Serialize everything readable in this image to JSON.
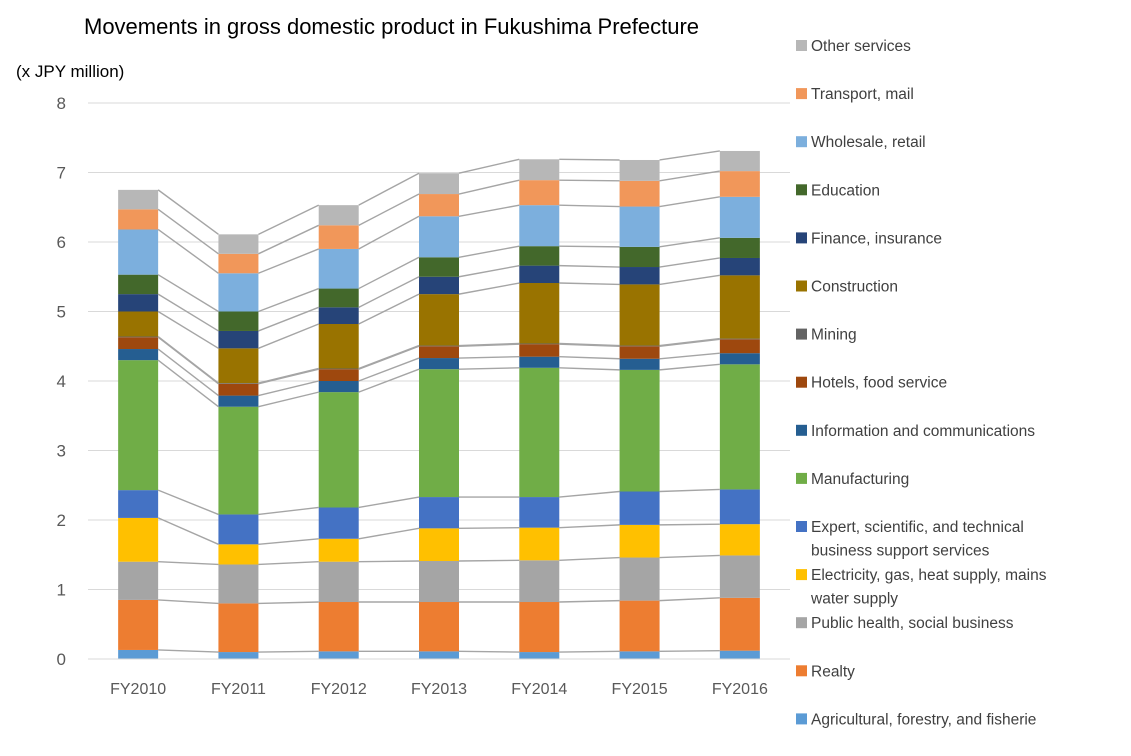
{
  "chart_data": {
    "type": "bar",
    "stacked": true,
    "title": "Movements in gross domestic product in Fukushima Prefecture",
    "unit_label": "(x JPY million)",
    "categories": [
      "FY2010",
      "FY2011",
      "FY2012",
      "FY2013",
      "FY2014",
      "FY2015",
      "FY2016"
    ],
    "ylim": [
      0,
      8
    ],
    "yticks": [
      "0",
      "1",
      "2",
      "3",
      "4",
      "5",
      "6",
      "7",
      "8"
    ],
    "grid": true,
    "series_lines": true,
    "legend_position": "right",
    "series": [
      {
        "name": "Agricultural, forestry, and fisherie",
        "color": "#5b9bd5",
        "values": [
          0.13,
          0.1,
          0.11,
          0.11,
          0.1,
          0.11,
          0.12
        ]
      },
      {
        "name": "Realty",
        "color": "#ed7d31",
        "values": [
          0.72,
          0.7,
          0.71,
          0.71,
          0.72,
          0.73,
          0.76
        ]
      },
      {
        "name": "Public health, social business",
        "color": "#a5a5a5",
        "values": [
          0.55,
          0.56,
          0.58,
          0.59,
          0.6,
          0.62,
          0.61
        ]
      },
      {
        "name": "Electricity, gas, heat supply, mains water supply",
        "color": "#ffc000",
        "values": [
          0.63,
          0.29,
          0.33,
          0.47,
          0.47,
          0.47,
          0.45
        ]
      },
      {
        "name": "Expert, scientific, and technical business support services",
        "color": "#4472c4",
        "values": [
          0.4,
          0.43,
          0.45,
          0.45,
          0.44,
          0.48,
          0.5
        ]
      },
      {
        "name": "Manufacturing",
        "color": "#70ad47",
        "values": [
          1.87,
          1.55,
          1.66,
          1.84,
          1.86,
          1.75,
          1.8
        ]
      },
      {
        "name": "Information and communications",
        "color": "#255e91",
        "values": [
          0.16,
          0.16,
          0.16,
          0.16,
          0.16,
          0.16,
          0.16
        ]
      },
      {
        "name": "Hotels, food service",
        "color": "#9e480e",
        "values": [
          0.17,
          0.17,
          0.17,
          0.17,
          0.18,
          0.18,
          0.2
        ]
      },
      {
        "name": "Mining",
        "color": "#636363",
        "values": [
          0.01,
          0.01,
          0.01,
          0.01,
          0.01,
          0.01,
          0.01
        ]
      },
      {
        "name": "Construction",
        "color": "#997300",
        "values": [
          0.36,
          0.5,
          0.64,
          0.74,
          0.87,
          0.88,
          0.91
        ]
      },
      {
        "name": "Finance, insurance",
        "color": "#264478",
        "values": [
          0.25,
          0.25,
          0.24,
          0.25,
          0.25,
          0.25,
          0.25
        ]
      },
      {
        "name": "Education",
        "color": "#43682b",
        "values": [
          0.28,
          0.28,
          0.27,
          0.28,
          0.28,
          0.29,
          0.29
        ]
      },
      {
        "name": "Wholesale, retail",
        "color": "#7cafdd",
        "values": [
          0.65,
          0.55,
          0.57,
          0.59,
          0.59,
          0.58,
          0.59
        ]
      },
      {
        "name": "Transport, mail",
        "color": "#f1975a",
        "values": [
          0.29,
          0.28,
          0.34,
          0.32,
          0.36,
          0.37,
          0.37
        ]
      },
      {
        "name": "Other services",
        "color": "#b7b7b7",
        "values": [
          0.28,
          0.28,
          0.29,
          0.3,
          0.3,
          0.3,
          0.29
        ]
      }
    ]
  }
}
